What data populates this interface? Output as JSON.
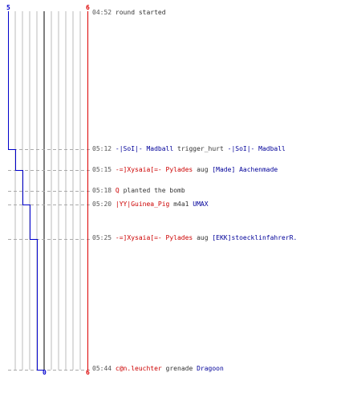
{
  "colors": {
    "team_ct": "#0000cc",
    "team_t": "#dd0000",
    "grid": "#bbbbbb",
    "center": "#555555",
    "dash": "#aaaaaa"
  },
  "scores": {
    "ct_start": "5",
    "t_start": "6",
    "ct_end": "0",
    "t_end": "6"
  },
  "ct_alive_steps": [
    {
      "time": "04:52",
      "alive": 5
    },
    {
      "time": "05:12",
      "alive": 4
    },
    {
      "time": "05:15",
      "alive": 3
    },
    {
      "time": "05:20",
      "alive": 2
    },
    {
      "time": "05:25",
      "alive": 1
    },
    {
      "time": "05:44",
      "alive": 0
    }
  ],
  "events": [
    {
      "time": "04:52",
      "text": "round started"
    },
    {
      "time": "05:12",
      "killer": "-|SoI|- Madball",
      "killer_team": "blue",
      "weapon": "trigger_hurt",
      "victim": "-|SoI|- Madball",
      "victim_team": "blue"
    },
    {
      "time": "05:15",
      "killer": "-=]Xysaia[=- Pylades",
      "killer_team": "red",
      "weapon": "aug",
      "victim": "[Made] Aachenmade",
      "victim_team": "blue"
    },
    {
      "time": "05:18",
      "killer": "Q",
      "killer_team": "red",
      "text": "planted the bomb"
    },
    {
      "time": "05:20",
      "killer": "|YY|Guinea_Pig",
      "killer_team": "red",
      "weapon": "m4a1",
      "victim": "UMAX",
      "victim_team": "blue"
    },
    {
      "time": "05:25",
      "killer": "-=]Xysaia[=- Pylades",
      "killer_team": "red",
      "weapon": "aug",
      "victim": "[EKK]stoecklinfahrerR.",
      "victim_team": "blue"
    },
    {
      "time": "05:44",
      "killer": "c@n.leuchter",
      "killer_team": "red",
      "weapon": "grenade",
      "victim": "Dragoon",
      "victim_team": "blue"
    }
  ]
}
